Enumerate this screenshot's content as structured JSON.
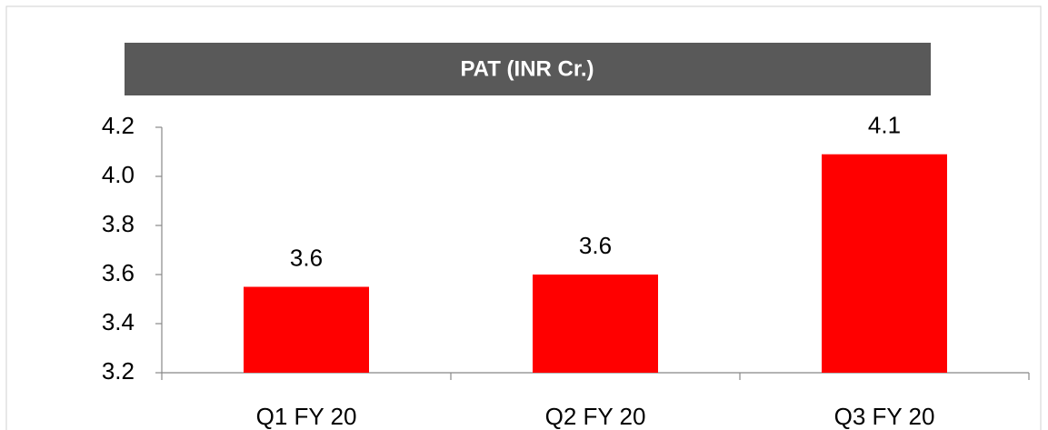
{
  "chart_data": {
    "type": "bar",
    "title": "PAT (INR Cr.)",
    "categories": [
      "Q1 FY 20",
      "Q2 FY 20",
      "Q3 FY 20"
    ],
    "values": [
      3.55,
      3.6,
      4.09
    ],
    "value_labels": [
      "3.6",
      "3.6",
      "4.1"
    ],
    "color": "#ff0000",
    "ylim": [
      3.2,
      4.2
    ],
    "yticks": [
      3.2,
      3.4,
      3.6,
      3.8,
      {
        "value": 4,
        "label": "4.0"
      },
      4.2
    ],
    "grid": false
  }
}
